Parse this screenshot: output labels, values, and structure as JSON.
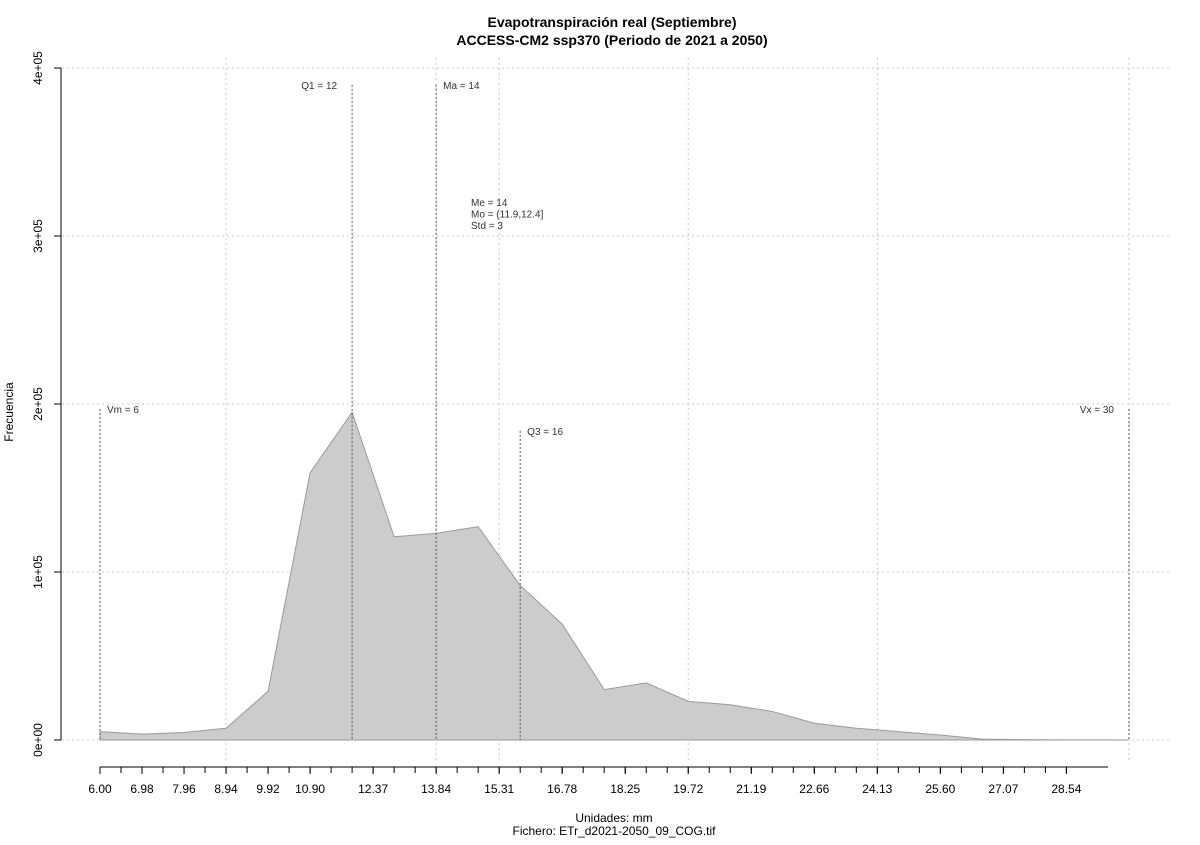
{
  "chart_data": {
    "type": "area",
    "title": "Evapotranspiración real (Septiembre)",
    "subtitle": "ACCESS-CM2 ssp370 (Periodo de 2021 a 2050)",
    "xlabel": "Unidades: mm",
    "ylabel": "Frecuencia",
    "footer": "Fichero: ETr_d2021-2050_09_COG.tif",
    "xlim": [
      6,
      30
    ],
    "ylim": [
      0,
      400000
    ],
    "x_tick_values": [
      6.0,
      6.98,
      7.96,
      8.94,
      9.92,
      10.9,
      12.37,
      13.84,
      15.31,
      16.78,
      18.25,
      19.72,
      21.19,
      22.66,
      24.13,
      25.6,
      27.07,
      28.54
    ],
    "x_tick_labels": [
      "6.00",
      "6.98",
      "7.96",
      "8.94",
      "9.92",
      "10.90",
      "12.37",
      "13.84",
      "15.31",
      "16.78",
      "18.25",
      "19.72",
      "21.19",
      "22.66",
      "24.13",
      "25.60",
      "27.07",
      "28.54"
    ],
    "y_ticks": [
      0,
      100000,
      200000,
      300000,
      400000
    ],
    "y_tick_labels": [
      "0e+00",
      "1e+05",
      "2e+05",
      "3e+05",
      "4e+05"
    ],
    "grid": true,
    "series": [
      {
        "x": [
          6.0,
          6.98,
          7.96,
          8.94,
          9.92,
          10.9,
          11.88,
          12.86,
          13.84,
          14.82,
          15.8,
          16.78,
          17.76,
          18.74,
          19.72,
          20.7,
          21.68,
          22.66,
          23.64,
          24.62,
          25.6,
          26.58,
          27.56,
          28.54,
          29.52,
          30.0
        ],
        "y": [
          5000,
          3500,
          4500,
          7000,
          29000,
          159000,
          195000,
          121000,
          123000,
          127000,
          92000,
          69000,
          30000,
          34000,
          23000,
          21000,
          17000,
          10000,
          7000,
          5000,
          3000,
          500,
          200,
          100,
          50,
          0
        ]
      }
    ],
    "vertical_markers": [
      {
        "label": "Vm = 6",
        "x": 6,
        "height": 197000,
        "label_side": "right"
      },
      {
        "label": "Q1 = 12",
        "x": 11.88,
        "height": 390000,
        "label_side": "left"
      },
      {
        "label": "Ma = 14",
        "x": 13.84,
        "height": 390000,
        "label_side": "right"
      },
      {
        "label": "Q3 = 16",
        "x": 15.8,
        "height": 184000,
        "label_side": "right"
      },
      {
        "label": "Vx = 30",
        "x": 30,
        "height": 197000,
        "label_side": "left"
      }
    ],
    "stats_annotation": [
      "Me = 14",
      "Mo = (11.9,12.4]",
      "Std = 3"
    ]
  }
}
